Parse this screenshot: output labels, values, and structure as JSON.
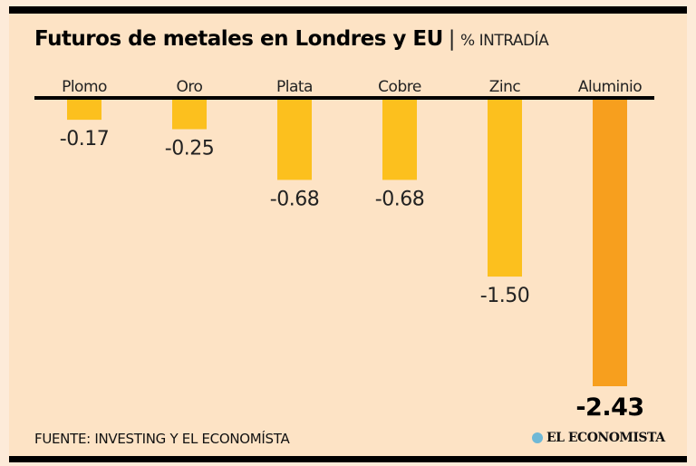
{
  "chart_data": {
    "type": "bar",
    "title": "Futuros de metales en Londres y EU",
    "subtitle": "% INTRADÍA",
    "categories": [
      "Plomo",
      "Oro",
      "Plata",
      "Cobre",
      "Zinc",
      "Aluminio"
    ],
    "values": [
      -0.17,
      -0.25,
      -0.68,
      -0.68,
      -1.5,
      -2.43
    ],
    "value_labels": [
      "-0.17",
      "-0.25",
      "-0.68",
      "-0.68",
      "-1.50",
      "-2.43"
    ],
    "colors": [
      "#fcc01e",
      "#fcc01e",
      "#fcc01e",
      "#fcc01e",
      "#fcc01e",
      "#f79f1e"
    ],
    "ylim": [
      -2.43,
      0
    ],
    "xlabel": "",
    "ylabel": "",
    "grid": false
  },
  "footer": {
    "source": "FUENTE: INVESTING Y EL ECONOMÍSTA",
    "logo": "EL ECONOMISTA"
  }
}
